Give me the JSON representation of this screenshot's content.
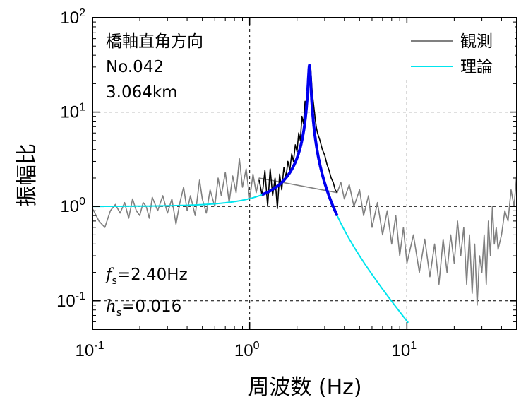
{
  "chart_data": {
    "type": "line",
    "x_scale": "log",
    "y_scale": "log",
    "xlim": [
      0.1,
      50
    ],
    "ylim": [
      0.05,
      100
    ],
    "xlabel": "周波数 (Hz)",
    "ylabel": "振幅比",
    "grid": "dashed at decades",
    "x_ticks": [
      {
        "base": "10",
        "exp": "-1",
        "value": 0.1
      },
      {
        "base": "10",
        "exp": "0",
        "value": 1
      },
      {
        "base": "10",
        "exp": "1",
        "value": 10
      }
    ],
    "y_ticks": [
      {
        "base": "10",
        "exp": "-1",
        "value": 0.1
      },
      {
        "base": "10",
        "exp": "0",
        "value": 1
      },
      {
        "base": "10",
        "exp": "1",
        "value": 10
      },
      {
        "base": "10",
        "exp": "2",
        "value": 100
      }
    ],
    "annotations": {
      "line1": "橋軸直角方向",
      "line2": "No.042",
      "line3": "3.064km",
      "fs_symbol": "f",
      "fs_sub": "s",
      "fs_value": "=2.40Hz",
      "hs_symbol": "h",
      "hs_sub": "s",
      "hs_value": "=0.016"
    },
    "legend": {
      "placement": "top-right",
      "entries": [
        {
          "label": "観測",
          "color": "#808080"
        },
        {
          "label": "理論",
          "color": "#00e5ee"
        }
      ]
    },
    "series": [
      {
        "name": "観測",
        "color": "#808080",
        "points": [
          [
            0.1,
            0.95
          ],
          [
            0.11,
            0.7
          ],
          [
            0.12,
            0.6
          ],
          [
            0.13,
            0.9
          ],
          [
            0.14,
            1.05
          ],
          [
            0.15,
            0.85
          ],
          [
            0.16,
            1.1
          ],
          [
            0.17,
            0.75
          ],
          [
            0.18,
            1.2
          ],
          [
            0.19,
            0.9
          ],
          [
            0.2,
            0.8
          ],
          [
            0.21,
            1.1
          ],
          [
            0.22,
            1.0
          ],
          [
            0.23,
            0.75
          ],
          [
            0.24,
            1.25
          ],
          [
            0.26,
            0.9
          ],
          [
            0.28,
            1.3
          ],
          [
            0.3,
            0.85
          ],
          [
            0.32,
            1.2
          ],
          [
            0.34,
            0.65
          ],
          [
            0.36,
            1.1
          ],
          [
            0.38,
            1.6
          ],
          [
            0.4,
            0.9
          ],
          [
            0.42,
            1.3
          ],
          [
            0.45,
            0.8
          ],
          [
            0.48,
            1.9
          ],
          [
            0.5,
            1.2
          ],
          [
            0.53,
            0.85
          ],
          [
            0.56,
            1.5
          ],
          [
            0.6,
            1.0
          ],
          [
            0.63,
            2.0
          ],
          [
            0.66,
            1.3
          ],
          [
            0.7,
            2.3
          ],
          [
            0.74,
            1.1
          ],
          [
            0.78,
            2.1
          ],
          [
            0.82,
            1.4
          ],
          [
            0.86,
            3.2
          ],
          [
            0.9,
            1.6
          ],
          [
            0.95,
            2.5
          ],
          [
            1.0,
            1.2
          ],
          [
            1.05,
            2.2
          ],
          [
            1.1,
            1.4
          ],
          [
            1.15,
            2.0
          ],
          [
            3.6,
            1.4
          ],
          [
            3.8,
            1.8
          ],
          [
            4.0,
            1.2
          ],
          [
            4.3,
            1.7
          ],
          [
            4.6,
            1.0
          ],
          [
            5.0,
            1.5
          ],
          [
            5.3,
            0.8
          ],
          [
            5.7,
            1.3
          ],
          [
            6.0,
            0.6
          ],
          [
            6.5,
            1.1
          ],
          [
            7.0,
            0.5
          ],
          [
            7.5,
            0.9
          ],
          [
            8.0,
            0.4
          ],
          [
            8.5,
            0.8
          ],
          [
            9.0,
            0.3
          ],
          [
            9.5,
            0.6
          ],
          [
            10.0,
            0.25
          ],
          [
            11,
            0.5
          ],
          [
            12,
            0.2
          ],
          [
            13,
            0.45
          ],
          [
            14,
            0.18
          ],
          [
            15,
            0.4
          ],
          [
            16,
            0.15
          ],
          [
            17,
            0.45
          ],
          [
            18,
            0.2
          ],
          [
            19,
            0.5
          ],
          [
            20,
            0.25
          ],
          [
            21,
            0.7
          ],
          [
            22,
            0.3
          ],
          [
            23,
            0.6
          ],
          [
            24,
            0.15
          ],
          [
            25,
            0.5
          ],
          [
            26,
            0.12
          ],
          [
            27,
            0.4
          ],
          [
            28,
            0.09
          ],
          [
            29,
            0.3
          ],
          [
            30,
            0.2
          ],
          [
            31,
            0.5
          ],
          [
            32,
            0.15
          ],
          [
            33,
            0.7
          ],
          [
            34,
            0.3
          ],
          [
            35,
            1.0
          ],
          [
            36,
            0.4
          ],
          [
            37,
            0.6
          ],
          [
            38,
            0.35
          ],
          [
            40,
            0.5
          ],
          [
            42,
            0.9
          ],
          [
            44,
            0.7
          ],
          [
            46,
            1.5
          ],
          [
            48,
            1.0
          ],
          [
            50,
            2.2
          ]
        ]
      },
      {
        "name": "",
        "color": "#000000",
        "points": [
          [
            1.15,
            1.9
          ],
          [
            1.2,
            1.3
          ],
          [
            1.25,
            2.4
          ],
          [
            1.3,
            1.0
          ],
          [
            1.35,
            2.5
          ],
          [
            1.4,
            1.3
          ],
          [
            1.45,
            2.0
          ],
          [
            1.5,
            0.95
          ],
          [
            1.55,
            2.2
          ],
          [
            1.6,
            1.5
          ],
          [
            1.65,
            2.6
          ],
          [
            1.7,
            2.0
          ],
          [
            1.75,
            3.0
          ],
          [
            1.8,
            2.4
          ],
          [
            1.85,
            3.6
          ],
          [
            1.9,
            3.0
          ],
          [
            1.95,
            4.5
          ],
          [
            2.0,
            3.8
          ],
          [
            2.05,
            6.0
          ],
          [
            2.1,
            5.0
          ],
          [
            2.15,
            9.0
          ],
          [
            2.2,
            7.5
          ],
          [
            2.25,
            13.0
          ],
          [
            2.3,
            11.0
          ],
          [
            2.35,
            22.0
          ],
          [
            2.38,
            26.0
          ],
          [
            2.4,
            30.0
          ],
          [
            2.42,
            24.0
          ],
          [
            2.45,
            28.0
          ],
          [
            2.5,
            16.0
          ],
          [
            2.55,
            12.0
          ],
          [
            2.6,
            9.0
          ],
          [
            2.65,
            7.0
          ],
          [
            2.7,
            6.0
          ],
          [
            2.8,
            5.0
          ],
          [
            2.9,
            4.0
          ],
          [
            3.0,
            3.5
          ],
          [
            3.1,
            2.8
          ],
          [
            3.2,
            2.4
          ],
          [
            3.3,
            2.0
          ],
          [
            3.4,
            1.8
          ],
          [
            3.5,
            1.5
          ],
          [
            3.6,
            1.4
          ]
        ]
      },
      {
        "name": "理論",
        "color": "#00e5ee",
        "fs": 2.4,
        "hs": 0.016,
        "x_range": [
          0.1,
          10.2
        ]
      },
      {
        "name": "",
        "color": "#0000ee",
        "fs": 2.4,
        "hs": 0.016,
        "x_range": [
          1.2,
          3.6
        ]
      }
    ]
  }
}
